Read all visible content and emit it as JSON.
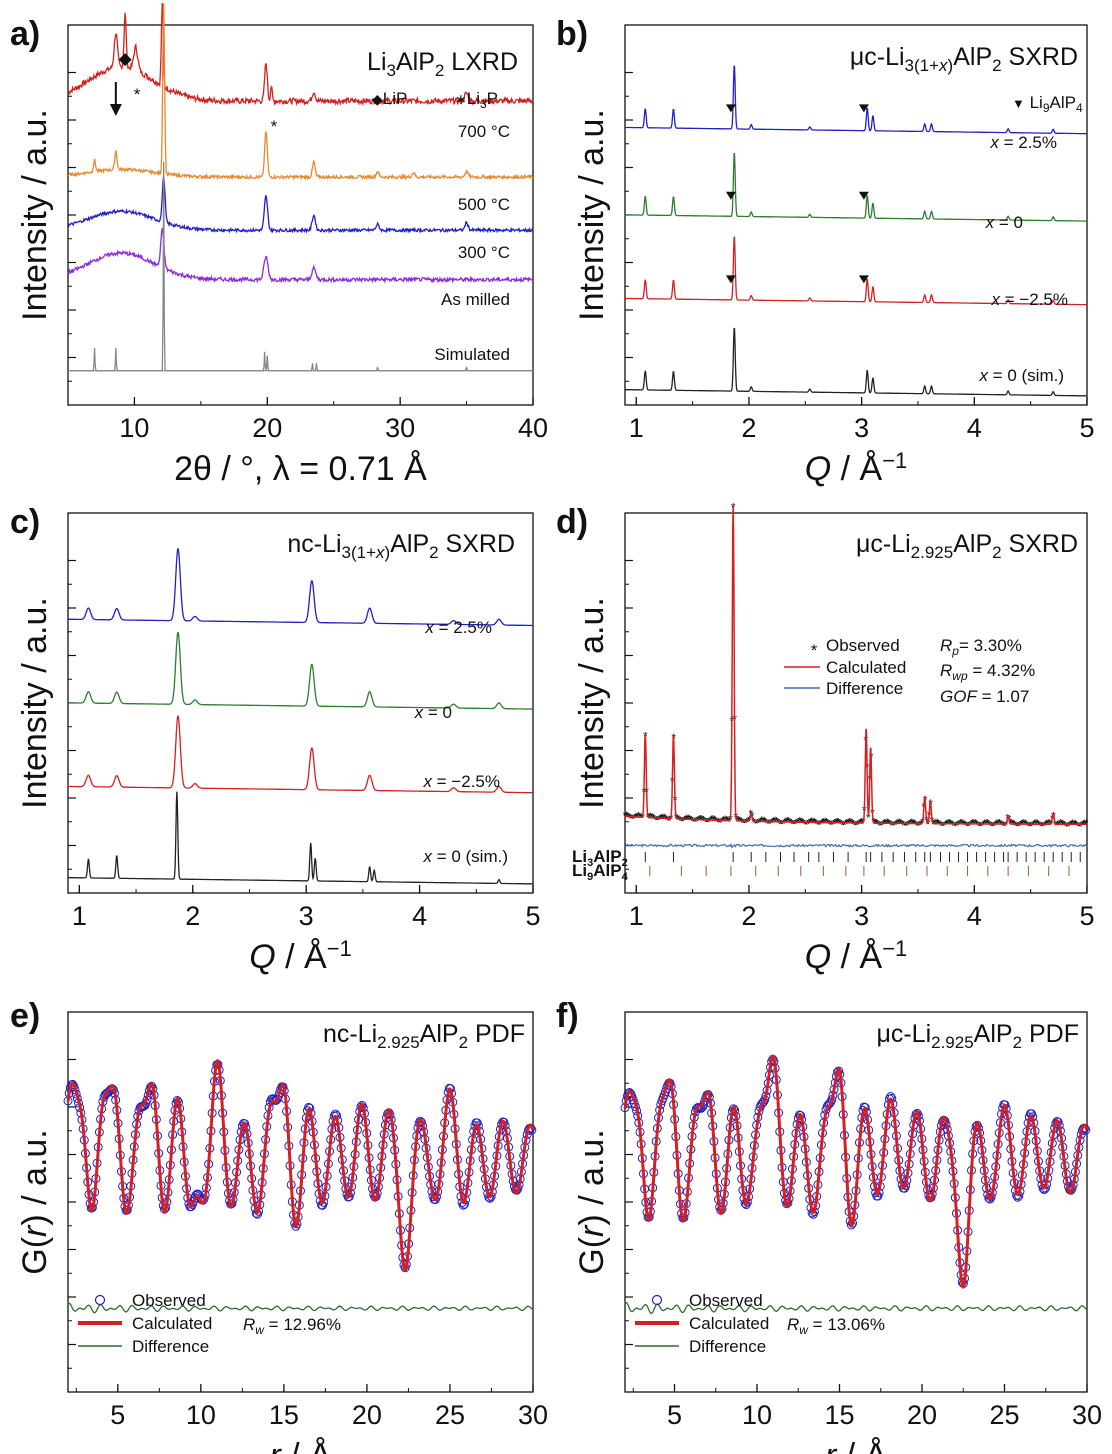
{
  "colors": {
    "red": "#d42020",
    "orange": "#e8892e",
    "blue": "#2020c8",
    "purple": "#8a2be2",
    "black": "#222222",
    "green": "#2e7d2e",
    "gray": "#888888",
    "steel": "#3a6fb0",
    "darkgreen": "#2f6b2f",
    "brown": "#a05a2c",
    "li9_orange": "#e08a2c"
  },
  "chart_data": [
    {
      "panel": "a)",
      "type": "line",
      "title_parts": [
        "Li",
        "3",
        "AlP",
        "2",
        "  LXRD"
      ],
      "xlabel": "2θ / °,  λ = 0.71 Å",
      "ylabel": "Intensity / a.u.",
      "xlim": [
        5,
        40
      ],
      "xticks": [
        10,
        20,
        30,
        40
      ],
      "legend": [
        {
          "symbol": "◆",
          "text": "LiP"
        },
        {
          "symbol": "∗",
          "text": "Li",
          "sub": "3",
          "after": "P"
        }
      ],
      "series": [
        {
          "name": "700 °C",
          "color": "red",
          "offset": 0.8,
          "hump": 0.09,
          "noise": 0.015,
          "peaks": [
            [
              8.6,
              0.09,
              0.12
            ],
            [
              9.3,
              0.14,
              0.08
            ],
            [
              10.1,
              0.06,
              0.15
            ],
            [
              12.1,
              0.22,
              0.07
            ],
            [
              19.9,
              0.1,
              0.1
            ],
            [
              20.3,
              0.04,
              0.06
            ],
            [
              23.5,
              0.025,
              0.12
            ],
            [
              35.0,
              0.02,
              0.15
            ]
          ]
        },
        {
          "name": "500 °C",
          "color": "orange",
          "offset": 0.6,
          "hump": 0.02,
          "noise": 0.008,
          "peaks": [
            [
              7.0,
              0.03,
              0.08
            ],
            [
              8.6,
              0.05,
              0.08
            ],
            [
              12.2,
              0.45,
              0.07
            ],
            [
              19.9,
              0.12,
              0.1
            ],
            [
              23.5,
              0.04,
              0.1
            ],
            [
              28.3,
              0.015,
              0.1
            ],
            [
              31.0,
              0.012,
              0.1
            ],
            [
              35.0,
              0.015,
              0.12
            ]
          ]
        },
        {
          "name": "300 °C",
          "color": "blue",
          "offset": 0.46,
          "hump": 0.05,
          "noise": 0.008,
          "peaks": [
            [
              12.2,
              0.12,
              0.1
            ],
            [
              19.9,
              0.09,
              0.12
            ],
            [
              23.5,
              0.04,
              0.12
            ],
            [
              28.3,
              0.015,
              0.12
            ],
            [
              35.0,
              0.02,
              0.12
            ]
          ]
        },
        {
          "name": "As milled",
          "color": "purple",
          "offset": 0.33,
          "hump": 0.07,
          "noise": 0.01,
          "peaks": [
            [
              12.1,
              0.1,
              0.12
            ],
            [
              19.9,
              0.06,
              0.15
            ],
            [
              23.5,
              0.03,
              0.15
            ]
          ]
        },
        {
          "name": "Simulated",
          "color": "gray",
          "offset": 0.09,
          "hump": 0.0,
          "noise": 0.0,
          "peaks": [
            [
              7.0,
              0.06,
              0.03
            ],
            [
              8.6,
              0.06,
              0.03
            ],
            [
              12.2,
              0.55,
              0.03
            ],
            [
              19.8,
              0.05,
              0.03
            ],
            [
              20.0,
              0.04,
              0.03
            ],
            [
              23.4,
              0.02,
              0.03
            ],
            [
              23.7,
              0.02,
              0.03
            ],
            [
              28.3,
              0.01,
              0.03
            ],
            [
              35.0,
              0.01,
              0.03
            ]
          ]
        }
      ],
      "series_label_colors": [
        "red",
        "orange",
        "blue",
        "purple",
        "black"
      ]
    },
    {
      "panel": "b)",
      "type": "line",
      "title_parts": [
        "μc-Li",
        "3(1+",
        "x",
        ")",
        "AlP",
        "2",
        " SXRD"
      ],
      "xlabel": "Q / Å−1",
      "ylabel": "Intensity / a.u.",
      "xlim": [
        0.9,
        5
      ],
      "xticks": [
        1,
        2,
        3,
        4,
        5
      ],
      "legend": [
        {
          "symbol": "▼",
          "text": "Li",
          "sub": "9",
          "after": "AlP",
          "sub2": "4"
        }
      ],
      "series": [
        {
          "name": "x = 2.5%",
          "color": "blue",
          "offset": 0.73,
          "markers": [
            1.84,
            3.02
          ]
        },
        {
          "name": "x = 0",
          "color": "green",
          "offset": 0.5,
          "markers": [
            1.84,
            3.02
          ]
        },
        {
          "name": "x = −2.5%",
          "color": "red",
          "offset": 0.28,
          "markers": [
            1.84,
            3.02
          ]
        },
        {
          "name": "x = 0 (sim.)",
          "color": "black",
          "offset": 0.04,
          "markers": []
        }
      ],
      "peaks": [
        [
          1.08,
          0.05
        ],
        [
          1.33,
          0.05
        ],
        [
          1.87,
          0.17
        ],
        [
          2.02,
          0.012
        ],
        [
          2.54,
          0.008
        ],
        [
          3.05,
          0.06
        ],
        [
          3.1,
          0.04
        ],
        [
          3.56,
          0.02
        ],
        [
          3.62,
          0.02
        ],
        [
          4.3,
          0.01
        ],
        [
          4.7,
          0.01
        ]
      ],
      "peak_width": 0.008
    },
    {
      "panel": "c)",
      "type": "line",
      "title_parts": [
        "nc-Li",
        "3(1+",
        "x",
        ")",
        "AlP",
        "2",
        "  SXRD"
      ],
      "xlabel": "Q / Å−1",
      "ylabel": "Intensity / a.u.",
      "xlim": [
        0.9,
        5
      ],
      "xticks": [
        1,
        2,
        3,
        4,
        5
      ],
      "series": [
        {
          "name": "x = 2.5%",
          "color": "blue",
          "offset": 0.72
        },
        {
          "name": "x = 0",
          "color": "green",
          "offset": 0.5
        },
        {
          "name": "x = −2.5%",
          "color": "red",
          "offset": 0.28
        },
        {
          "name": "x = 0 (sim.)",
          "color": "black",
          "offset": 0.04
        }
      ],
      "peaks": [
        [
          1.08,
          0.03
        ],
        [
          1.33,
          0.03
        ],
        [
          1.87,
          0.19
        ],
        [
          2.02,
          0.012
        ],
        [
          3.05,
          0.11
        ],
        [
          3.56,
          0.04
        ],
        [
          4.3,
          0.01
        ],
        [
          4.7,
          0.015
        ]
      ],
      "peak_width": 0.02,
      "sim_peaks": [
        [
          1.08,
          0.05
        ],
        [
          1.33,
          0.06
        ],
        [
          1.86,
          0.23
        ],
        [
          3.04,
          0.1
        ],
        [
          3.08,
          0.06
        ],
        [
          3.56,
          0.04
        ],
        [
          3.6,
          0.03
        ],
        [
          4.7,
          0.01
        ]
      ]
    },
    {
      "panel": "d)",
      "type": "scatter",
      "title_parts": [
        "μc-Li",
        "2.925",
        "AlP",
        "2",
        " SXRD"
      ],
      "xlabel": "Q / Å−1",
      "ylabel": "Intensity / a.u.",
      "xlim": [
        0.9,
        5
      ],
      "xticks": [
        1,
        2,
        3,
        4,
        5
      ],
      "legend": [
        "Observed",
        "Calculated",
        "Difference"
      ],
      "stats": {
        "rp": "= 3.30%",
        "rwp": "= 4.32%",
        "gof": "= 1.07"
      },
      "stat_names": {
        "rp_main": "R",
        "rp_sub": "p",
        "rwp_main": "R",
        "rwp_sub": "wp",
        "gof": "GOF"
      },
      "peaks": [
        [
          1.08,
          0.22
        ],
        [
          1.33,
          0.22
        ],
        [
          1.86,
          0.83
        ],
        [
          2.02,
          0.02
        ],
        [
          3.04,
          0.25
        ],
        [
          3.08,
          0.2
        ],
        [
          3.56,
          0.07
        ],
        [
          3.61,
          0.06
        ],
        [
          4.3,
          0.02
        ],
        [
          4.7,
          0.03
        ]
      ],
      "phases": [
        {
          "parts": [
            "Li",
            "3",
            "AlP",
            "2"
          ],
          "color": "black",
          "ticks": [
            1.08,
            1.33,
            1.86,
            2.02,
            2.15,
            2.28,
            2.4,
            2.53,
            2.62,
            2.75,
            2.88,
            3.04,
            3.08,
            3.18,
            3.28,
            3.38,
            3.48,
            3.56,
            3.61,
            3.7,
            3.78,
            3.86,
            3.94,
            4.02,
            4.1,
            4.18,
            4.26,
            4.3,
            4.38,
            4.46,
            4.54,
            4.62,
            4.7,
            4.78,
            4.86,
            4.94
          ]
        },
        {
          "parts": [
            "Li",
            "9",
            "AlP",
            "4"
          ],
          "color": "brown",
          "ticks": [
            1.12,
            1.4,
            1.62,
            1.84,
            2.06,
            2.26,
            2.46,
            2.66,
            2.86,
            3.02,
            3.2,
            3.4,
            3.58,
            3.76,
            3.94,
            4.12,
            4.3,
            4.48,
            4.66,
            4.84
          ]
        }
      ]
    },
    {
      "panel": "e)",
      "type": "line",
      "title_parts": [
        "nc-Li",
        "2.925",
        "AlP",
        "2",
        " PDF"
      ],
      "xlabel": "r / Å",
      "ylabel": "G(r) / a.u.",
      "xlim": [
        2,
        30
      ],
      "xticks": [
        5,
        10,
        15,
        20,
        25,
        30
      ],
      "legend": [
        "Observed",
        "Calculated",
        "Difference"
      ],
      "rw": "= 12.96%",
      "rw_names": {
        "main": "R",
        "sub": "w"
      },
      "peaks": [
        [
          2.2,
          0.85
        ],
        [
          2.9,
          0.55
        ],
        [
          3.4,
          -0.8
        ],
        [
          4.1,
          0.7
        ],
        [
          4.8,
          0.8
        ],
        [
          5.5,
          -0.7
        ],
        [
          6.3,
          0.6
        ],
        [
          7.1,
          0.9
        ],
        [
          7.8,
          -0.7
        ],
        [
          8.6,
          0.8
        ],
        [
          9.3,
          -0.6
        ],
        [
          10.2,
          -0.5
        ],
        [
          11.0,
          1.2
        ],
        [
          11.8,
          -0.6
        ],
        [
          12.6,
          0.5
        ],
        [
          13.4,
          -0.7
        ],
        [
          14.2,
          0.7
        ],
        [
          15.0,
          0.9
        ],
        [
          15.7,
          -0.9
        ],
        [
          16.5,
          0.7
        ],
        [
          17.3,
          -0.6
        ],
        [
          18.1,
          0.6
        ],
        [
          18.9,
          -0.5
        ],
        [
          19.7,
          0.7
        ],
        [
          20.5,
          -0.5
        ],
        [
          21.3,
          0.6
        ],
        [
          22.3,
          -1.3
        ],
        [
          23.2,
          0.5
        ],
        [
          24.1,
          -0.5
        ],
        [
          25.0,
          0.9
        ],
        [
          25.8,
          -0.6
        ],
        [
          26.6,
          0.5
        ],
        [
          27.4,
          -0.5
        ],
        [
          28.2,
          0.5
        ],
        [
          29.0,
          -0.4
        ],
        [
          29.8,
          0.4
        ]
      ],
      "diff_amp": 0.12
    },
    {
      "panel": "f)",
      "type": "line",
      "title_parts": [
        "μc-Li",
        "2.925",
        "AlP",
        "2",
        " PDF"
      ],
      "xlabel": "r / Å",
      "ylabel": "G(r) / a.u.",
      "xlim": [
        2,
        30
      ],
      "xticks": [
        5,
        10,
        15,
        20,
        25,
        30
      ],
      "legend": [
        "Observed",
        "Calculated",
        "Difference"
      ],
      "rw": "= 13.06%",
      "rw_names": {
        "main": "R",
        "sub": "w"
      },
      "peaks": [
        [
          2.2,
          0.75
        ],
        [
          2.9,
          0.55
        ],
        [
          3.4,
          -0.9
        ],
        [
          4.1,
          0.6
        ],
        [
          4.8,
          0.9
        ],
        [
          5.5,
          -0.8
        ],
        [
          6.3,
          0.6
        ],
        [
          7.1,
          0.8
        ],
        [
          7.8,
          -0.7
        ],
        [
          8.6,
          0.7
        ],
        [
          9.3,
          -0.6
        ],
        [
          10.2,
          0.6
        ],
        [
          11.0,
          1.2
        ],
        [
          11.8,
          -0.6
        ],
        [
          12.6,
          0.6
        ],
        [
          13.4,
          -0.7
        ],
        [
          14.2,
          0.6
        ],
        [
          15.0,
          1.1
        ],
        [
          15.7,
          -0.9
        ],
        [
          16.5,
          0.7
        ],
        [
          17.3,
          -0.5
        ],
        [
          18.1,
          0.8
        ],
        [
          18.9,
          -0.4
        ],
        [
          19.7,
          0.6
        ],
        [
          20.5,
          -0.5
        ],
        [
          21.3,
          0.5
        ],
        [
          22.5,
          -1.5
        ],
        [
          23.3,
          0.5
        ],
        [
          24.1,
          -0.5
        ],
        [
          25.0,
          0.7
        ],
        [
          25.8,
          -0.5
        ],
        [
          26.6,
          0.6
        ],
        [
          27.4,
          -0.4
        ],
        [
          28.2,
          0.5
        ],
        [
          29.0,
          -0.4
        ],
        [
          29.8,
          0.4
        ]
      ],
      "diff_amp": 0.14
    }
  ]
}
